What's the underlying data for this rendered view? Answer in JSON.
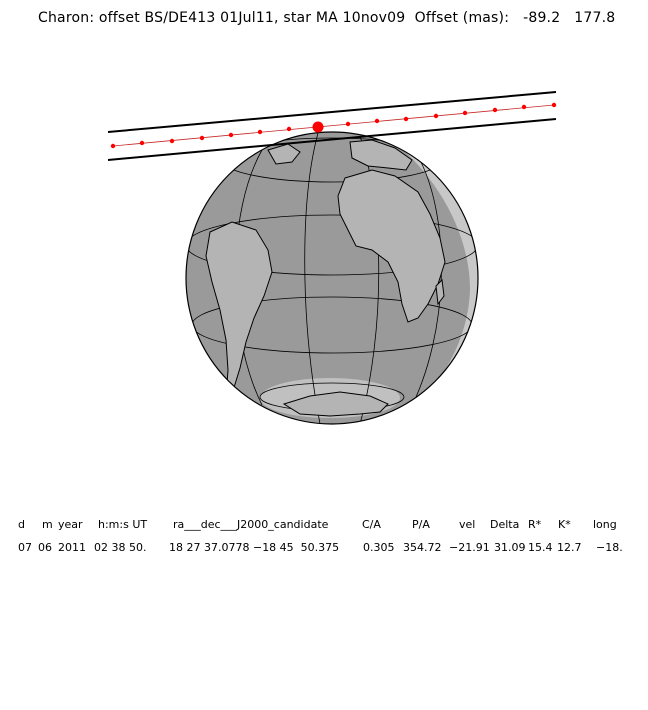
{
  "title": "Charon: offset BS/DE413 01Jul11, star MA 10nov09  Offset (mas):   -89.2   177.8",
  "table": {
    "headers": [
      "d",
      "m",
      "year",
      "h:m:s UT",
      "ra___dec___J2000_candidate",
      "C/A",
      "P/A",
      "vel",
      "Delta",
      "R*",
      "K*",
      "long"
    ],
    "values": [
      "07",
      "06",
      "2011",
      "02 38 50.",
      "18 27 37.0778 −18 45  50.375",
      "0.305",
      "354.72",
      "−21.91",
      "31.09",
      "15.4",
      "12.7",
      "−18."
    ]
  },
  "colors": {
    "ocean": "#9a9a9a",
    "daylight_limb": "#c8c8c8",
    "track_dot": "#ff0000",
    "lines": "#000000"
  }
}
